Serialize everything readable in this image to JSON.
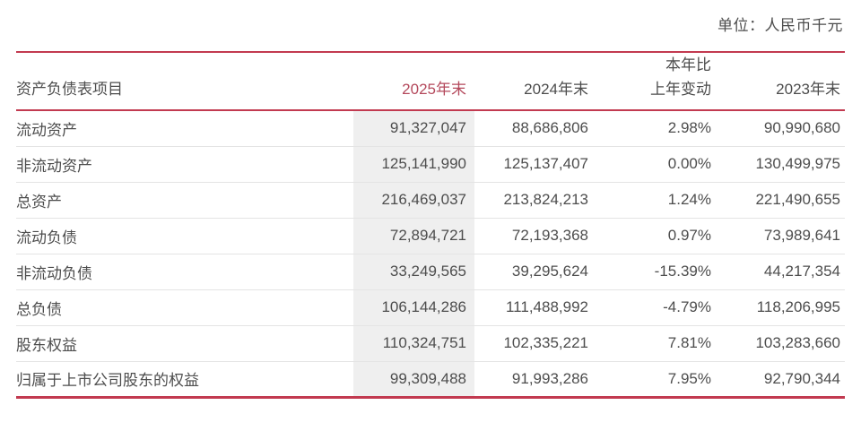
{
  "page": {
    "unit_label": "单位：人民币千元"
  },
  "table": {
    "header": {
      "item": "资产负债表项目",
      "end2025": "2025年末",
      "end2024": "2024年末",
      "change_line1": "本年比",
      "change_line2": "上年变动",
      "end2023": "2023年末"
    },
    "rows": [
      {
        "item": "流动资产",
        "end2025": "91,327,047",
        "end2024": "88,686,806",
        "change": "2.98%",
        "end2023": "90,990,680"
      },
      {
        "item": "非流动资产",
        "end2025": "125,141,990",
        "end2024": "125,137,407",
        "change": "0.00%",
        "end2023": "130,499,975"
      },
      {
        "item": "总资产",
        "end2025": "216,469,037",
        "end2024": "213,824,213",
        "change": "1.24%",
        "end2023": "221,490,655"
      },
      {
        "item": "流动负债",
        "end2025": "72,894,721",
        "end2024": "72,193,368",
        "change": "0.97%",
        "end2023": "73,989,641"
      },
      {
        "item": "非流动负债",
        "end2025": "33,249,565",
        "end2024": "39,295,624",
        "change": "-15.39%",
        "end2023": "44,217,354"
      },
      {
        "item": "总负债",
        "end2025": "106,144,286",
        "end2024": "111,488,992",
        "change": "-4.79%",
        "end2023": "118,206,995"
      },
      {
        "item": "股东权益",
        "end2025": "110,324,751",
        "end2024": "102,335,221",
        "change": "7.81%",
        "end2023": "103,283,660"
      },
      {
        "item": "归属于上市公司股东的权益",
        "end2025": "99,309,488",
        "end2024": "91,993,286",
        "change": "7.95%",
        "end2023": "92,790,344"
      }
    ]
  },
  "colors": {
    "accent_red_rule": "#c23a50",
    "highlight_header_text": "#b4495c",
    "column_highlight_bg": "#efefef",
    "body_text": "#4d4d4d",
    "row_separator": "#e4e4e4"
  }
}
